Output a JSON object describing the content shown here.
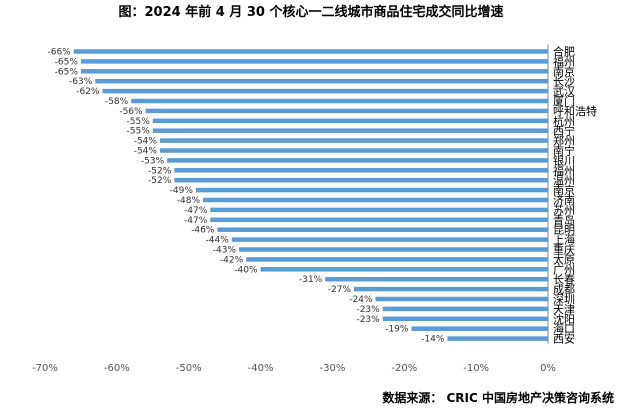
{
  "chart_data": {
    "type": "bar",
    "orientation": "horizontal",
    "title": "图：2024 年前 4 月 30 个核心一二线城市商品住宅成交同比增速",
    "source": "数据来源： CRIC 中国房地产决策咨询系统",
    "categories": [
      "合肥",
      "福州",
      "南京",
      "长沙",
      "武汉",
      "厦门",
      "呼和浩特",
      "杭州",
      "西宁",
      "郑州",
      "南宁",
      "银川",
      "福州",
      "温州",
      "南京",
      "济南",
      "苏州",
      "青岛",
      "昆明",
      "上海",
      "重庆",
      "太原",
      "广州",
      "长春",
      "成都",
      "深圳",
      "天津",
      "沈阳",
      "海口",
      "西安"
    ],
    "values": [
      -66,
      -65,
      -65,
      -63,
      -62,
      -58,
      -56,
      -55,
      -55,
      -54,
      -54,
      -53,
      -52,
      -52,
      -49,
      -48,
      -47,
      -47,
      -46,
      -44,
      -43,
      -42,
      -40,
      -31,
      -27,
      -24,
      -23,
      -23,
      -19,
      -14
    ],
    "value_labels": [
      "-66%",
      "-65%",
      "-65%",
      "-63%",
      "-62%",
      "-58%",
      "-56%",
      "-55%",
      "-55%",
      "-54%",
      "-54%",
      "-53%",
      "-52%",
      "-52%",
      "-49%",
      "-48%",
      "-47%",
      "-47%",
      "-46%",
      "-44%",
      "-43%",
      "-42%",
      "-40%",
      "-31%",
      "-27%",
      "-24%",
      "-23%",
      "-23%",
      "-19%",
      "-14%"
    ],
    "xlim": [
      -70,
      0
    ],
    "xticks": [
      "-70%",
      "-60%",
      "-50%",
      "-40%",
      "-30%",
      "-20%",
      "-10%",
      "0%"
    ],
    "bar_color": "#5b9bd5",
    "grid": false,
    "legend": "none"
  }
}
